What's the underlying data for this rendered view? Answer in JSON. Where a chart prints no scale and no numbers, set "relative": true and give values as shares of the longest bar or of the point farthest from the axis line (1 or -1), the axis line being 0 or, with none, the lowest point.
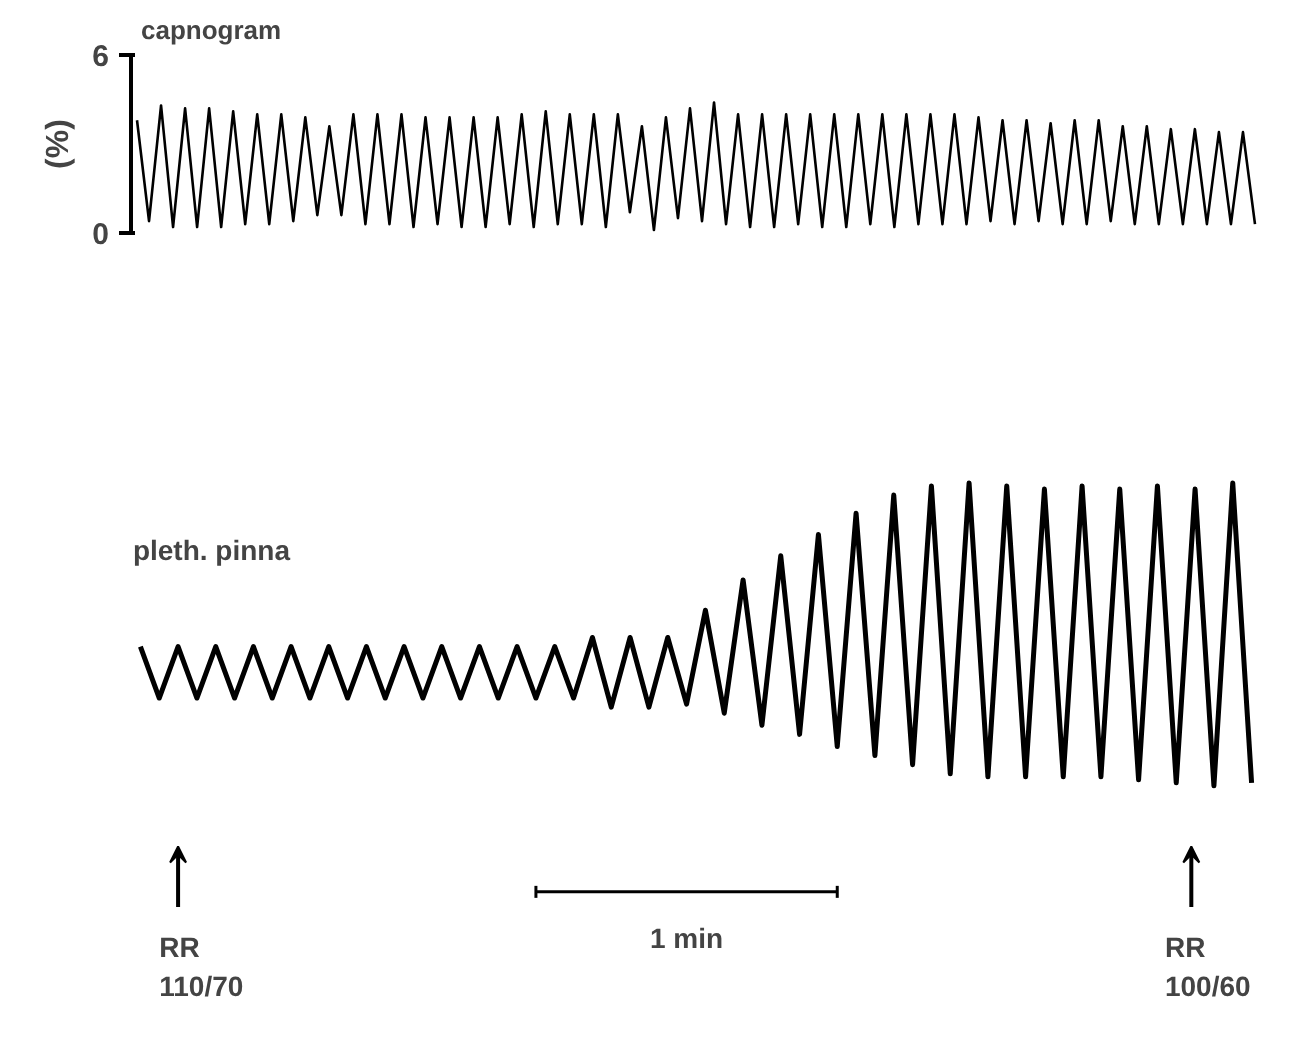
{
  "chart_data": [
    {
      "type": "line",
      "title": "capnogram",
      "ylabel": "(%)",
      "ylim": [
        0,
        6
      ],
      "yticks": [
        0,
        6
      ],
      "tick_labels": "y",
      "grid": false,
      "marker": "none",
      "line_style": "solid",
      "categories": [
        null,
        null,
        null,
        null,
        null,
        null,
        null,
        null,
        null,
        null,
        null,
        null,
        null,
        null,
        null,
        null,
        null,
        null,
        null,
        null,
        null,
        null,
        null,
        null,
        null,
        null,
        null,
        null,
        null,
        null,
        null,
        null,
        null,
        null,
        null,
        null,
        null,
        null,
        null,
        null,
        null,
        null,
        null,
        null,
        null,
        null,
        null,
        null,
        null,
        null,
        null,
        null,
        null,
        null,
        null,
        null,
        null,
        null,
        null,
        null,
        null,
        null,
        null,
        null,
        null,
        null,
        null,
        null,
        null,
        null,
        null,
        null,
        null,
        null,
        null,
        null,
        null,
        null,
        null,
        null,
        null,
        null,
        null,
        null,
        null,
        null,
        null,
        null,
        null,
        null,
        null,
        null,
        null,
        null
      ],
      "series": [
        {
          "color": "#000000",
          "values": [
            3.8,
            0.4,
            4.3,
            0.2,
            4.2,
            0.2,
            4.2,
            0.2,
            4.1,
            0.3,
            4.0,
            0.3,
            4.0,
            0.4,
            3.9,
            0.6,
            3.6,
            0.6,
            4.0,
            0.3,
            4.0,
            0.3,
            4.0,
            0.2,
            3.9,
            0.3,
            3.9,
            0.2,
            3.9,
            0.2,
            3.9,
            0.3,
            4.0,
            0.2,
            4.1,
            0.3,
            4.0,
            0.3,
            4.0,
            0.2,
            4.0,
            0.7,
            3.6,
            0.1,
            3.9,
            0.5,
            4.2,
            0.4,
            4.4,
            0.3,
            4.0,
            0.2,
            4.0,
            0.2,
            4.0,
            0.3,
            4.0,
            0.2,
            4.0,
            0.2,
            4.0,
            0.3,
            4.0,
            0.2,
            4.0,
            0.3,
            4.0,
            0.3,
            4.0,
            0.3,
            3.9,
            0.4,
            3.8,
            0.3,
            3.8,
            0.4,
            3.7,
            0.3,
            3.8,
            0.3,
            3.8,
            0.4,
            3.6,
            0.3,
            3.6,
            0.3,
            3.5,
            0.3,
            3.5,
            0.3,
            3.4,
            0.3,
            3.4,
            0.3
          ]
        }
      ]
    },
    {
      "type": "line",
      "relative": true,
      "tick_labels": false,
      "grid": false,
      "marker": "none",
      "line_style": "solid",
      "annotations": [
        "pleth. pinna",
        "RR\n110/70",
        "1 min",
        "RR\n100/60"
      ],
      "categories": [
        null,
        null,
        null,
        null,
        null,
        null,
        null,
        null,
        null,
        null,
        null,
        null,
        null,
        null,
        null,
        null,
        null,
        null,
        null,
        null,
        null,
        null,
        null,
        null,
        null,
        null,
        null,
        null,
        null,
        null,
        null,
        null,
        null,
        null,
        null,
        null,
        null,
        null,
        null,
        null,
        null,
        null,
        null,
        null,
        null,
        null,
        null,
        null,
        null,
        null,
        null,
        null,
        null,
        null,
        null,
        null,
        null,
        null,
        null,
        null
      ],
      "series": [
        {
          "color": "#000000",
          "values": [
            0.46,
            0.29,
            0.46,
            0.29,
            0.46,
            0.29,
            0.46,
            0.29,
            0.46,
            0.29,
            0.46,
            0.29,
            0.46,
            0.29,
            0.46,
            0.29,
            0.46,
            0.29,
            0.46,
            0.29,
            0.46,
            0.29,
            0.46,
            0.29,
            0.49,
            0.26,
            0.49,
            0.26,
            0.49,
            0.27,
            0.58,
            0.24,
            0.68,
            0.2,
            0.76,
            0.17,
            0.83,
            0.13,
            0.9,
            0.1,
            0.96,
            0.07,
            0.99,
            0.04,
            1.0,
            0.03,
            0.99,
            0.03,
            0.98,
            0.03,
            0.99,
            0.03,
            0.98,
            0.02,
            0.99,
            0.01,
            0.98,
            0.0,
            1.0,
            0.01
          ]
        }
      ]
    }
  ]
}
